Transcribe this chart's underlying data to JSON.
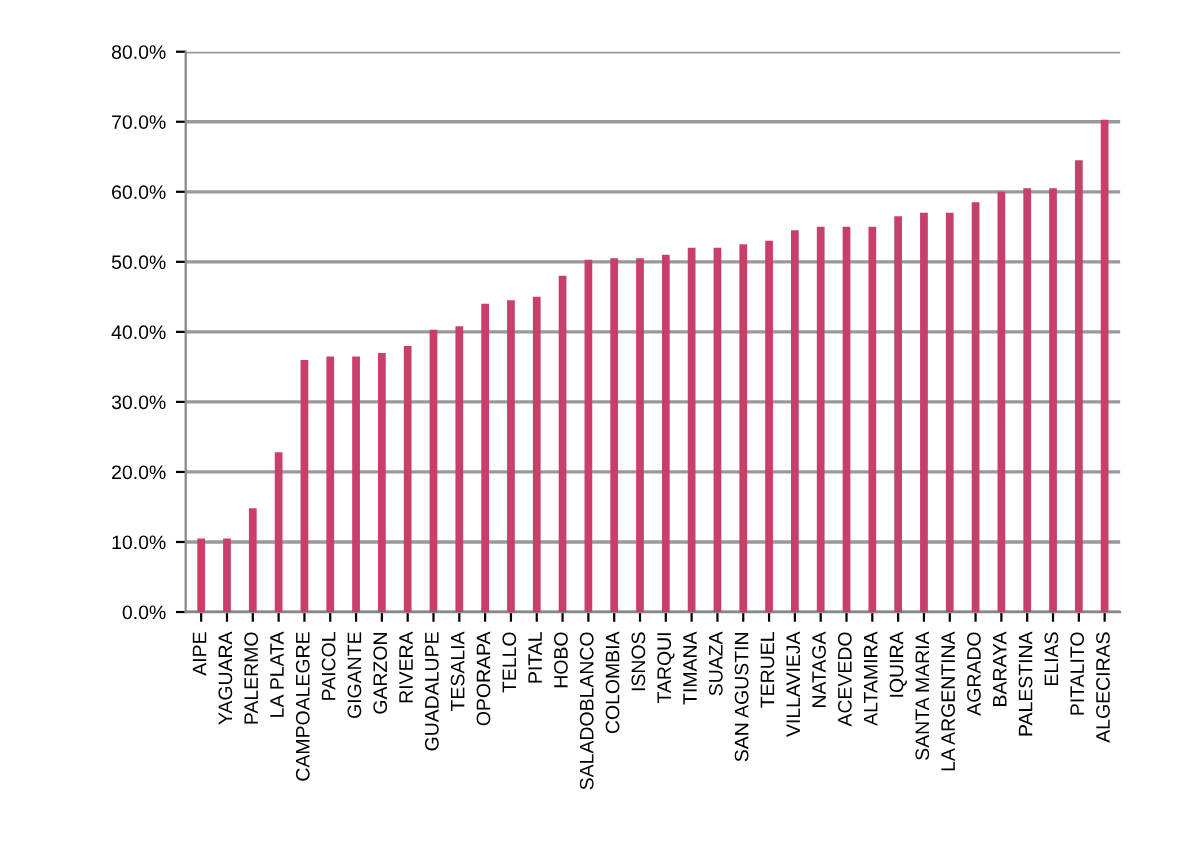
{
  "chart_data": {
    "type": "bar",
    "categories": [
      "AIPE",
      "YAGUARA",
      "PALERMO",
      "LA PLATA",
      "CAMPOALEGRE",
      "PAICOL",
      "GIGANTE",
      "GARZON",
      "RIVERA",
      "GUADALUPE",
      "TESALIA",
      "OPORAPA",
      "TELLO",
      "PITAL",
      "HOBO",
      "SALADOBLANCO",
      "COLOMBIA",
      "ISNOS",
      "TARQUI",
      "TIMANA",
      "SUAZA",
      "SAN AGUSTIN",
      "TERUEL",
      "VILLAVIEJA",
      "NATAGA",
      "ACEVEDO",
      "ALTAMIRA",
      "IQUIRA",
      "SANTA MARIA",
      "LA ARGENTINA",
      "AGRADO",
      "BARAYA",
      "PALESTINA",
      "ELIAS",
      "PITALITO",
      "ALGECIRAS"
    ],
    "values": [
      10.5,
      10.5,
      14.8,
      22.8,
      36,
      36.5,
      36.5,
      37,
      38,
      40.3,
      40.8,
      44,
      44.5,
      45,
      48,
      50.3,
      50.5,
      50.5,
      51,
      52,
      52,
      52.5,
      53,
      54.5,
      55,
      55,
      55,
      56.5,
      57,
      57,
      58.5,
      60,
      60.5,
      60.5,
      64.5,
      70.3
    ],
    "color": "#c8406a",
    "ylim": [
      0,
      80
    ],
    "yticks": [
      {
        "value": 0,
        "label": "0.0%"
      },
      {
        "value": 10,
        "label": "10.0%"
      },
      {
        "value": 20,
        "label": "20.0%"
      },
      {
        "value": 30,
        "label": "30.0%"
      },
      {
        "value": 40,
        "label": "40.0%"
      },
      {
        "value": 50,
        "label": "50.0%"
      },
      {
        "value": 60,
        "label": "60.0%"
      },
      {
        "value": 70,
        "label": "70.0%"
      },
      {
        "value": 80,
        "label": "80.0%"
      }
    ],
    "grid": "y"
  }
}
